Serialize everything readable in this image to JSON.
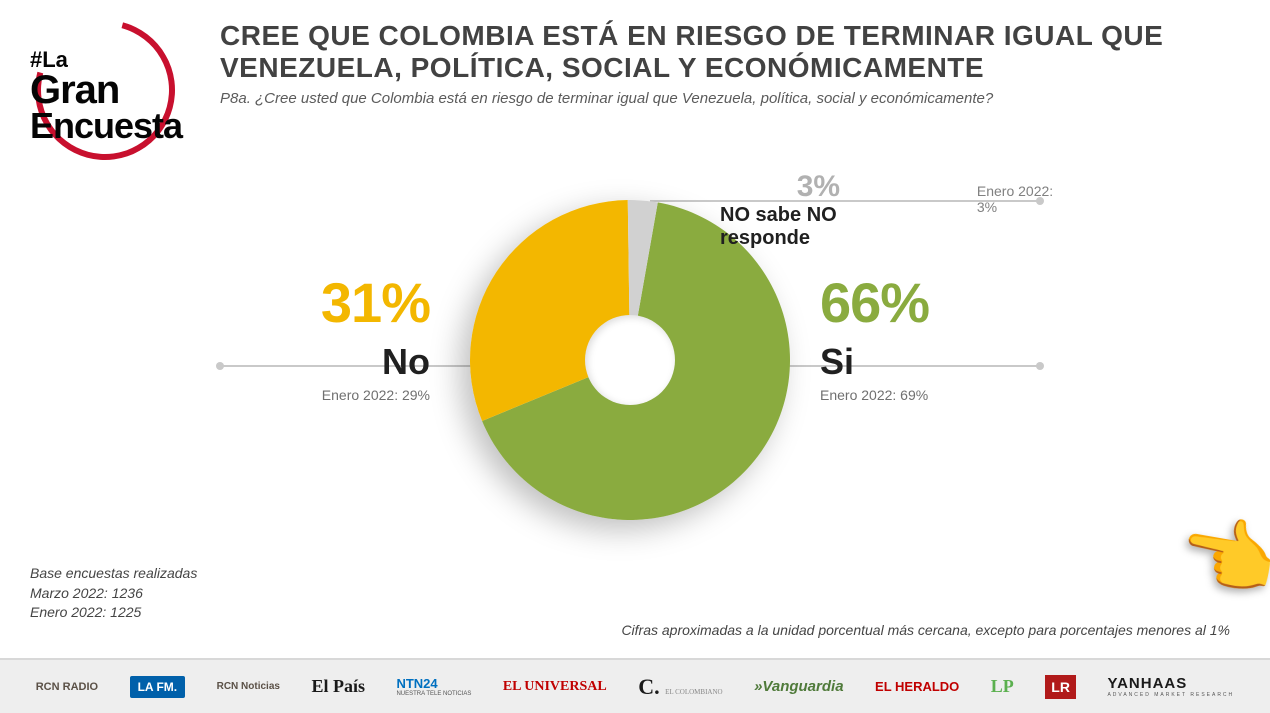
{
  "logo": {
    "line1": "#La",
    "line2": "Gran",
    "line3": "Encuesta",
    "ring_color": "#c8102e"
  },
  "header": {
    "title": "CREE QUE COLOMBIA ESTÁ EN RIESGO DE TERMINAR IGUAL QUE VENEZUELA, POLÍTICA, SOCIAL Y ECONÓMICAMENTE",
    "subtitle": "P8a. ¿Cree usted que Colombia está en riesgo de terminar igual que Venezuela, política, social y económicamente?",
    "title_color": "#424242",
    "title_fontsize": 28
  },
  "chart": {
    "type": "donut",
    "background_color": "#ffffff",
    "inner_radius_pct": 28,
    "slices": [
      {
        "key": "si",
        "label": "Si",
        "value": 66,
        "color": "#8aab3f",
        "prev_label": "Enero 2022: 69%",
        "pct_display": "66%",
        "label_color": "#8aab3f"
      },
      {
        "key": "no",
        "label": "No",
        "value": 31,
        "color": "#f3b700",
        "prev_label": "Enero 2022: 29%",
        "pct_display": "31%",
        "label_color": "#f3b700"
      },
      {
        "key": "nsnr",
        "label": "NO sabe NO responde",
        "value": 3,
        "color": "#d1d1d1",
        "prev_label": "Enero 2022: 3%",
        "pct_display": "3%",
        "label_color": "#b1b1b1"
      }
    ],
    "start_angle_deg": 10,
    "leader_color": "#c9c9c9",
    "shadow": true
  },
  "notes": {
    "base_heading": "Base encuestas realizadas",
    "base_line1": "Marzo 2022: 1236",
    "base_line2": "Enero 2022: 1225",
    "footnote": "Cifras aproximadas a la unidad porcentual más cercana, excepto para porcentajes menores al 1%"
  },
  "footer_logos": [
    "RCN RADIO",
    "LA FM.",
    "RCN Noticias",
    "El País",
    "NTN24",
    "EL UNIVERSAL",
    "C.",
    "»Vanguardia",
    "EL HERALDO",
    "LP",
    "LR",
    "YANHAAS"
  ],
  "hand_emoji": "👉"
}
